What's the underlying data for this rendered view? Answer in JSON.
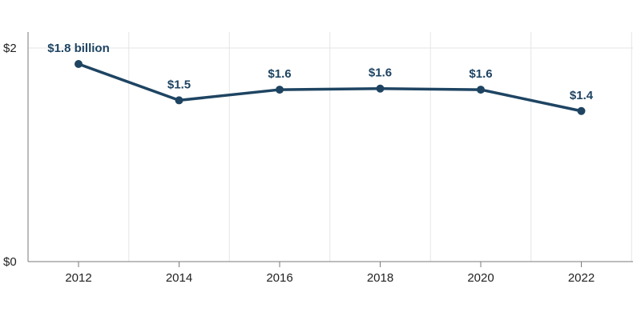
{
  "chart_data": {
    "type": "line",
    "title": "",
    "xlabel": "",
    "ylabel": "",
    "x": [
      "2012",
      "2014",
      "2016",
      "2018",
      "2020",
      "2022"
    ],
    "series": [
      {
        "values": [
          1.85,
          1.51,
          1.61,
          1.62,
          1.61,
          1.41
        ],
        "labels": [
          "$1.8 billion",
          "$1.5",
          "$1.6",
          "$1.6",
          "$1.6",
          "$1.4"
        ]
      }
    ],
    "ylim": [
      0,
      2
    ],
    "y_ticks": [
      {
        "value": 0,
        "label": "$0"
      },
      {
        "value": 2,
        "label": "$2"
      }
    ],
    "grid": true,
    "legend": "none",
    "colors": {
      "series": "#1e4462",
      "grid": "#e6e6e6",
      "axis": "#7a7a7a",
      "text": "#222222"
    }
  }
}
